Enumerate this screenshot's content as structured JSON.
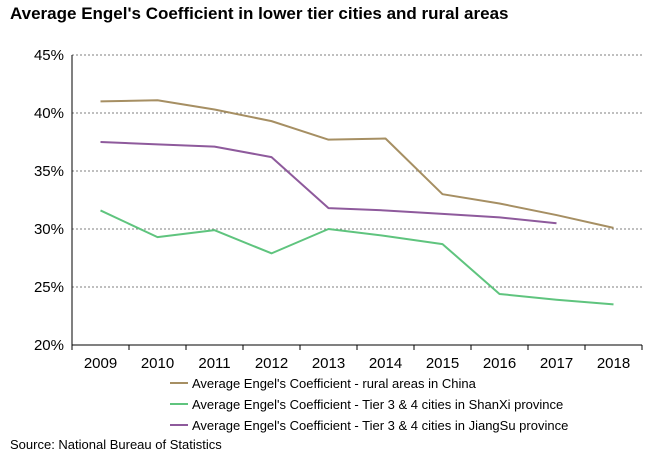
{
  "chart_data": {
    "type": "line",
    "title": "Average Engel's Coefficient in lower tier cities and rural areas",
    "xlabel": "",
    "ylabel": "",
    "categories": [
      "2009",
      "2010",
      "2011",
      "2012",
      "2013",
      "2014",
      "2015",
      "2016",
      "2017",
      "2018"
    ],
    "y_ticks": [
      "20%",
      "25%",
      "30%",
      "35%",
      "40%",
      "45%"
    ],
    "ylim": [
      20,
      45
    ],
    "grid": true,
    "legend_position": "bottom",
    "series": [
      {
        "name": "Average Engel's Coefficient - rural areas in China",
        "color": "#a68f63",
        "values": [
          41.0,
          41.1,
          40.3,
          39.3,
          37.7,
          37.8,
          33.0,
          32.2,
          31.2,
          30.1
        ]
      },
      {
        "name": "Average Engel's Coefficient - Tier 3 & 4 cities in ShanXi province",
        "color": "#5fc47e",
        "values": [
          31.6,
          29.3,
          29.9,
          27.9,
          30.0,
          29.4,
          28.7,
          24.4,
          23.9,
          23.5
        ]
      },
      {
        "name": "Average Engel's Coefficient - Tier 3 & 4 cities in JiangSu province",
        "color": "#8e5a9c",
        "values": [
          37.5,
          37.3,
          37.1,
          36.2,
          31.8,
          31.6,
          31.3,
          31.0,
          30.5,
          null
        ]
      }
    ]
  },
  "source": "Source: National Bureau of Statistics"
}
